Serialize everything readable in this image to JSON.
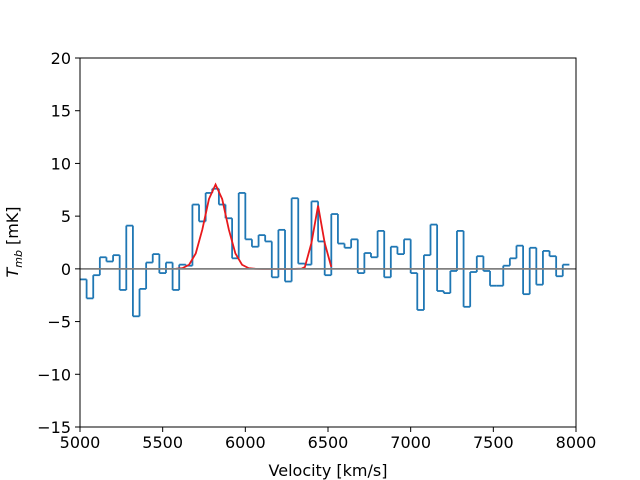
{
  "chart_data": {
    "type": "histogram",
    "xlabel": "Velocity [km/s]",
    "ylabel": {
      "symbol": "T",
      "subscript": "mb",
      "unit": "[mK]"
    },
    "bins": [
      5000,
      5040,
      5080,
      5120,
      5160,
      5200,
      5240,
      5280,
      5320,
      5360,
      5400,
      5440,
      5480,
      5520,
      5560,
      5600,
      5640,
      5680,
      5720,
      5760,
      5800,
      5840,
      5880,
      5920,
      5960,
      6000,
      6040,
      6080,
      6120,
      6160,
      6200,
      6240,
      6280,
      6320,
      6360,
      6400,
      6440,
      6480,
      6520,
      6560,
      6600,
      6640,
      6680,
      6720,
      6760,
      6800,
      6840,
      6880,
      6920,
      6960,
      7000,
      7040,
      7080,
      7120,
      7160,
      7200,
      7240,
      7280,
      7320,
      7360,
      7400,
      7440,
      7480,
      7520,
      7560,
      7600,
      7640,
      7680,
      7720,
      7760,
      7800,
      7840,
      7880,
      7920,
      7960
    ],
    "values": [
      -1.0,
      -2.8,
      -0.6,
      1.1,
      0.7,
      1.3,
      -2.0,
      4.1,
      -4.5,
      -1.9,
      0.6,
      1.4,
      -0.4,
      0.6,
      -2.0,
      0.4,
      0.3,
      6.1,
      4.5,
      7.2,
      7.6,
      6.1,
      4.8,
      1.0,
      7.2,
      2.8,
      2.1,
      3.2,
      2.6,
      -0.8,
      3.7,
      -1.2,
      6.7,
      0.5,
      0.4,
      6.4,
      2.6,
      -0.6,
      5.2,
      2.4,
      2.0,
      2.8,
      -0.4,
      1.5,
      1.1,
      3.6,
      -0.8,
      2.1,
      1.4,
      2.8,
      -0.4,
      -3.9,
      1.3,
      4.2,
      -2.1,
      -2.3,
      -0.2,
      3.6,
      -3.6,
      -0.3,
      1.2,
      -0.2,
      -1.6,
      -1.6,
      0.3,
      1.0,
      2.2,
      -2.4,
      2.0,
      -1.5,
      1.7,
      1.2,
      -0.7,
      0.4
    ],
    "color": "#1f77b4",
    "fit": {
      "color": "#e8191c",
      "x": [
        5580,
        5620,
        5660,
        5700,
        5740,
        5780,
        5820,
        5860,
        5900,
        5940,
        5980,
        6020,
        6060,
        6100,
        6140,
        6180,
        6220,
        6260,
        6300,
        6340,
        6360,
        6400,
        6440,
        6480,
        6520
      ],
      "values": [
        0.01,
        0.07,
        0.39,
        1.46,
        3.74,
        6.62,
        8.0,
        6.62,
        3.74,
        1.46,
        0.39,
        0.07,
        0.01,
        0,
        0,
        0,
        0,
        0,
        0,
        0.02,
        0.17,
        2.46,
        6.0,
        2.46,
        0.17
      ]
    },
    "zero_line": {
      "value": 0,
      "color": "#808080"
    },
    "xlim": [
      5000,
      8000
    ],
    "ylim": [
      -15,
      20
    ],
    "xticks": [
      5000,
      5500,
      6000,
      6500,
      7000,
      7500,
      8000
    ],
    "yticks": [
      {
        "value": -15,
        "label": "−15"
      },
      {
        "value": -10,
        "label": "−10"
      },
      {
        "value": -5,
        "label": "−5"
      },
      0,
      5,
      10,
      15,
      20
    ]
  }
}
